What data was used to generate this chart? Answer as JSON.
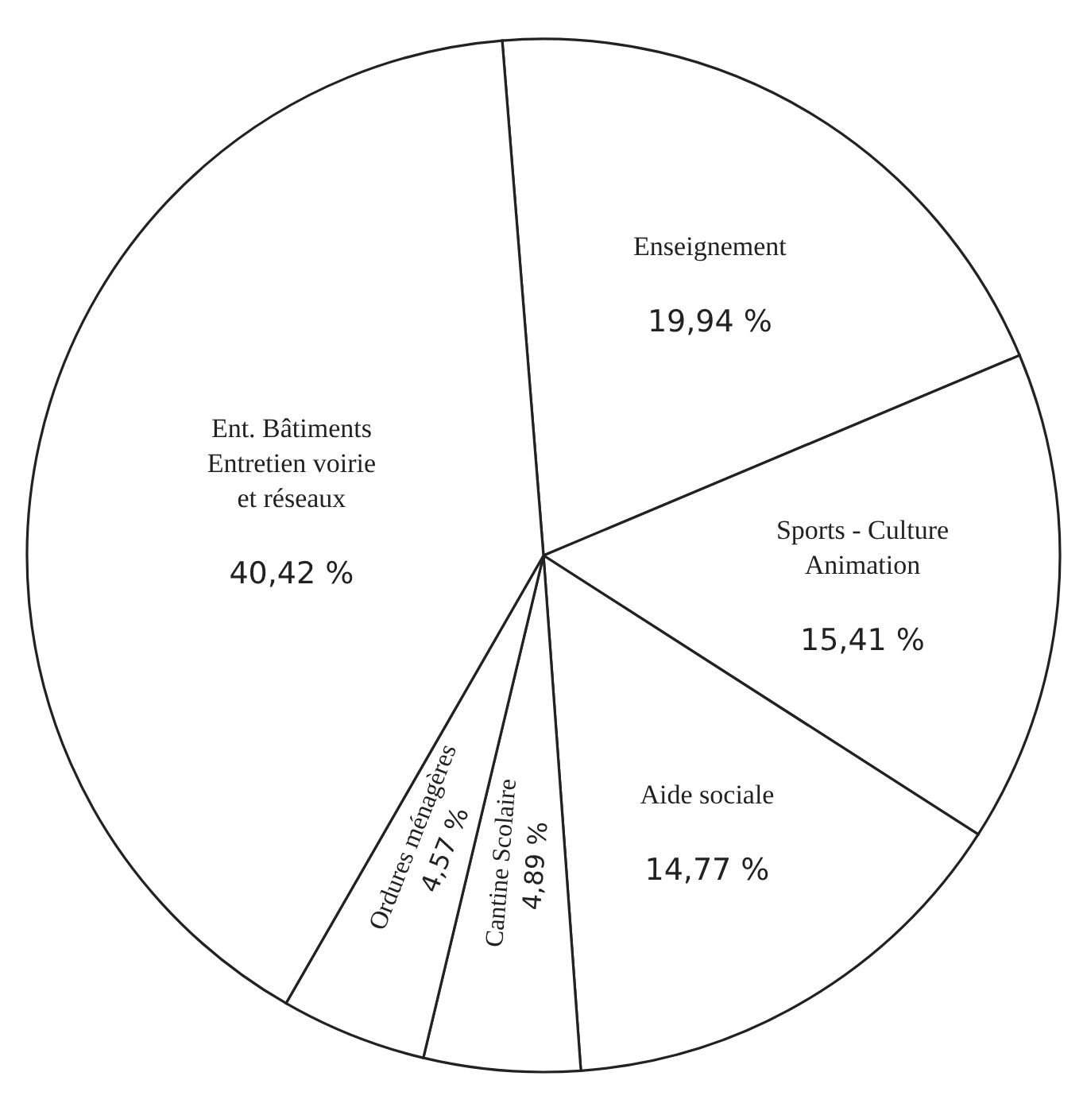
{
  "chart_data": {
    "type": "pie",
    "categories": [
      "Enseignement",
      "Sports - Culture Animation",
      "Aide sociale",
      "Cantine Scolaire",
      "Ordures ménagères",
      "Ent. Bâtiments Entretien voirie et réseaux"
    ],
    "values": [
      19.94,
      15.41,
      14.77,
      4.89,
      4.57,
      40.42
    ],
    "value_labels": [
      "19,94 %",
      "15,41 %",
      "14,77 %",
      "4,89 %",
      "4,57 %",
      "40,42 %"
    ],
    "colors": [
      "#ffffff",
      "#ffffff",
      "#ffffff",
      "#ffffff",
      "#ffffff",
      "#ffffff"
    ]
  }
}
